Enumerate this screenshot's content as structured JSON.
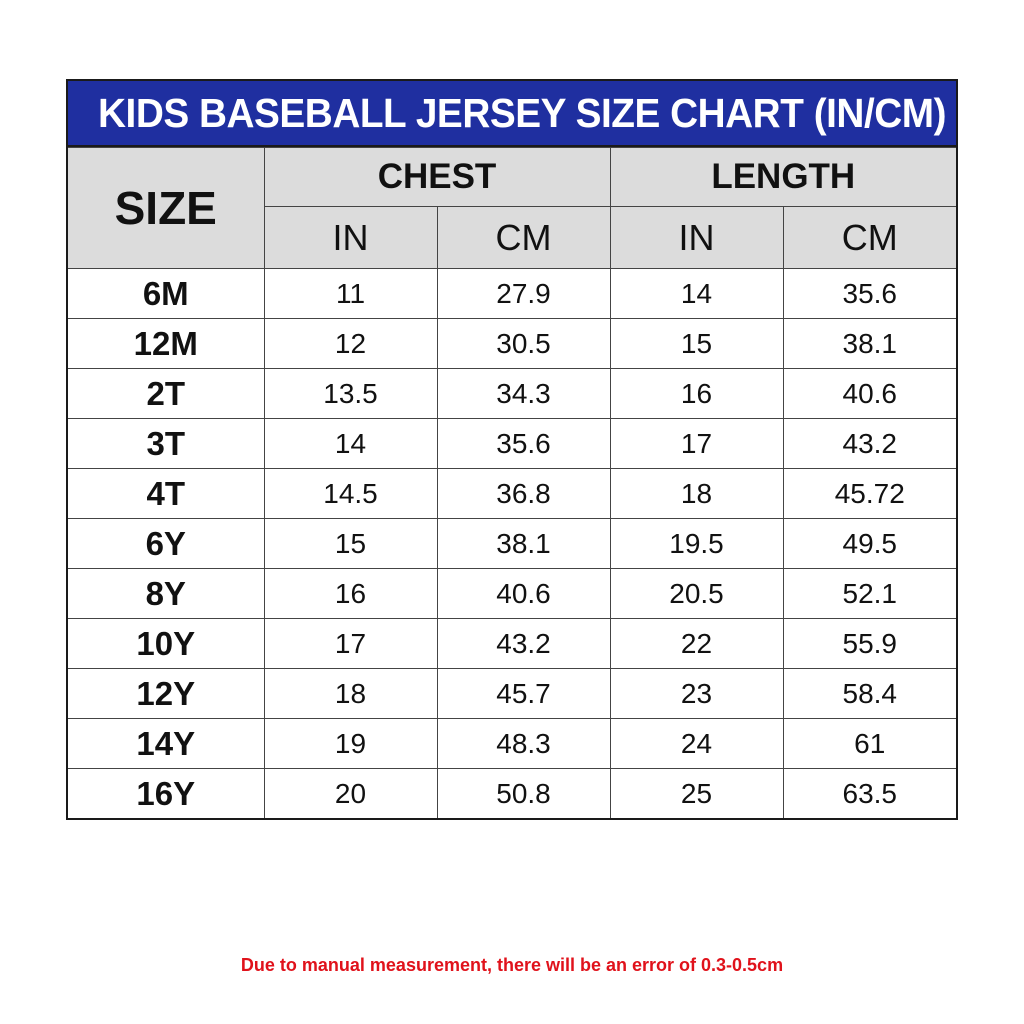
{
  "title": "KIDS BASEBALL JERSEY SIZE CHART (IN/CM)",
  "headers": {
    "size": "SIZE",
    "chest": "CHEST",
    "length": "LENGTH",
    "units": [
      "IN",
      "CM",
      "IN",
      "CM"
    ]
  },
  "rows": [
    {
      "size": "6M",
      "chest_in": "11",
      "chest_cm": "27.9",
      "length_in": "14",
      "length_cm": "35.6"
    },
    {
      "size": "12M",
      "chest_in": "12",
      "chest_cm": "30.5",
      "length_in": "15",
      "length_cm": "38.1"
    },
    {
      "size": "2T",
      "chest_in": "13.5",
      "chest_cm": "34.3",
      "length_in": "16",
      "length_cm": "40.6"
    },
    {
      "size": "3T",
      "chest_in": "14",
      "chest_cm": "35.6",
      "length_in": "17",
      "length_cm": "43.2"
    },
    {
      "size": "4T",
      "chest_in": "14.5",
      "chest_cm": "36.8",
      "length_in": "18",
      "length_cm": "45.72"
    },
    {
      "size": "6Y",
      "chest_in": "15",
      "chest_cm": "38.1",
      "length_in": "19.5",
      "length_cm": "49.5"
    },
    {
      "size": "8Y",
      "chest_in": "16",
      "chest_cm": "40.6",
      "length_in": "20.5",
      "length_cm": "52.1"
    },
    {
      "size": "10Y",
      "chest_in": "17",
      "chest_cm": "43.2",
      "length_in": "22",
      "length_cm": "55.9"
    },
    {
      "size": "12Y",
      "chest_in": "18",
      "chest_cm": "45.7",
      "length_in": "23",
      "length_cm": "58.4"
    },
    {
      "size": "14Y",
      "chest_in": "19",
      "chest_cm": "48.3",
      "length_in": "24",
      "length_cm": "61"
    },
    {
      "size": "16Y",
      "chest_in": "20",
      "chest_cm": "50.8",
      "length_in": "25",
      "length_cm": "63.5"
    }
  ],
  "note": "Due to manual measurement, there will be an error of 0.3-0.5cm",
  "colors": {
    "title_bg": "#1f2fa0",
    "title_text": "#ffffff",
    "header_bg": "#dcdcdc",
    "note_text": "#e0121b"
  }
}
